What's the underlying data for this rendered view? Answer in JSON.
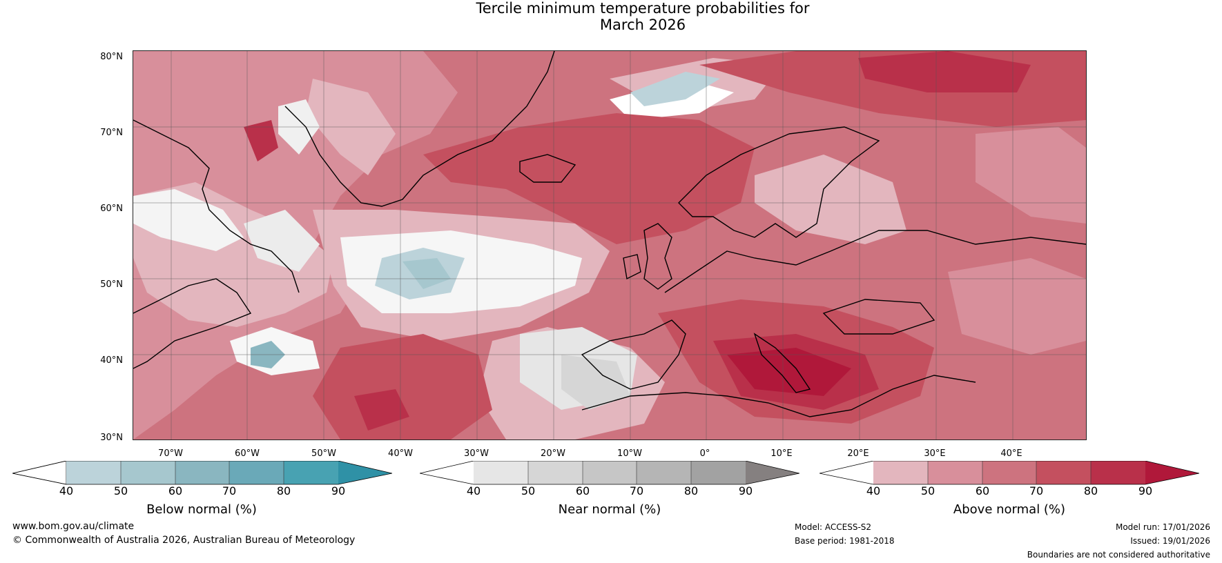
{
  "title": {
    "line1": "Tercile minimum temperature probabilities for",
    "line2": "March 2026"
  },
  "latitude_labels": [
    "80°N",
    "70°N",
    "60°N",
    "50°N",
    "40°N",
    "30°N"
  ],
  "longitude_labels": [
    "70°W",
    "60°W",
    "50°W",
    "40°W",
    "30°W",
    "20°W",
    "10°W",
    "0°",
    "10°E",
    "20°E",
    "30°E",
    "40°E"
  ],
  "colorbars": [
    {
      "name": "below",
      "label": "Below normal (%)",
      "ticks": [
        "40",
        "50",
        "60",
        "70",
        "80",
        "90"
      ],
      "colors": [
        "#ffffff",
        "#bcd3da",
        "#a6c7ce",
        "#8ab6c0",
        "#6aa9b8",
        "#48a2b2",
        "#2f91a6"
      ]
    },
    {
      "name": "near",
      "label": "Near normal (%)",
      "ticks": [
        "40",
        "50",
        "60",
        "70",
        "80",
        "90"
      ],
      "colors": [
        "#ffffff",
        "#e6e6e6",
        "#d6d6d6",
        "#c6c6c6",
        "#b5b5b5",
        "#a2a2a2",
        "#858080"
      ]
    },
    {
      "name": "above",
      "label": "Above normal (%)",
      "ticks": [
        "40",
        "50",
        "60",
        "70",
        "80",
        "90"
      ],
      "colors": [
        "#ffffff",
        "#e3b6be",
        "#d88f9b",
        "#cd737f",
        "#c4505f",
        "#b9304a",
        "#b0183a"
      ]
    }
  ],
  "footer": {
    "website": "www.bom.gov.au/climate",
    "copyright": "© Commonwealth of Australia 2026, Australian Bureau of Meteorology",
    "model": "Model: ACCESS-S2",
    "base_period": "Base period: 1981-2018",
    "model_run": "Model run: 17/01/2026",
    "issued": "Issued: 19/01/2026",
    "disclaimer": "Boundaries are not considered authoritative"
  }
}
